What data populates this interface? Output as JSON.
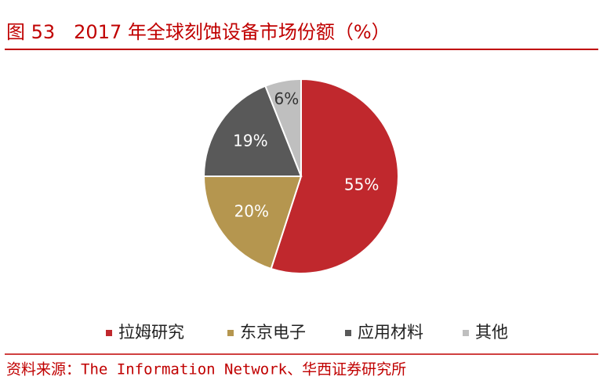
{
  "chart_data": {
    "type": "pie",
    "title": "图 53　2017 年全球刻蚀设备市场份额（%）",
    "categories": [
      "拉姆研究",
      "东京电子",
      "应用材料",
      "其他"
    ],
    "values": [
      55,
      20,
      19,
      6
    ],
    "value_labels": [
      "55%",
      "20%",
      "19%",
      "6%"
    ],
    "colors": [
      "#c0282d",
      "#b5964f",
      "#595959",
      "#bfbfbf"
    ],
    "legend": "bottom",
    "source": "资料来源：The Information Network、华西证券研究所"
  }
}
